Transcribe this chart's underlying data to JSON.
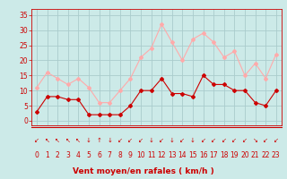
{
  "hours": [
    0,
    1,
    2,
    3,
    4,
    5,
    6,
    7,
    8,
    9,
    10,
    11,
    12,
    13,
    14,
    15,
    16,
    17,
    18,
    19,
    20,
    21,
    22,
    23
  ],
  "vent_moyen": [
    3,
    8,
    8,
    7,
    7,
    2,
    2,
    2,
    2,
    5,
    10,
    10,
    14,
    9,
    9,
    8,
    15,
    12,
    12,
    10,
    10,
    6,
    5,
    10
  ],
  "rafales": [
    11,
    16,
    14,
    12,
    14,
    11,
    6,
    6,
    10,
    14,
    21,
    24,
    32,
    26,
    20,
    27,
    29,
    26,
    21,
    23,
    15,
    19,
    14,
    22
  ],
  "wind_arrows": [
    "↙",
    "↖",
    "↖",
    "↖",
    "↖",
    "↓",
    "↑",
    "↓",
    "↙",
    "↙",
    "↙",
    "↓",
    "↙",
    "↓",
    "↙",
    "↓",
    "↙",
    "↙",
    "↙",
    "↙",
    "↙",
    "↘",
    "↙",
    "↙"
  ],
  "color_moyen": "#cc0000",
  "color_rafales": "#ffaaaa",
  "bg_color": "#cceae8",
  "grid_color": "#aacccc",
  "xlabel": "Vent moyen/en rafales ( km/h )",
  "ylabel_ticks": [
    0,
    5,
    10,
    15,
    20,
    25,
    30,
    35
  ],
  "ylim": [
    -1.5,
    37
  ],
  "xlim": [
    -0.5,
    23.5
  ],
  "label_fontsize": 6.5,
  "tick_fontsize": 5.5,
  "arrow_fontsize": 5.0,
  "line_width": 0.8,
  "marker_size": 2.0
}
